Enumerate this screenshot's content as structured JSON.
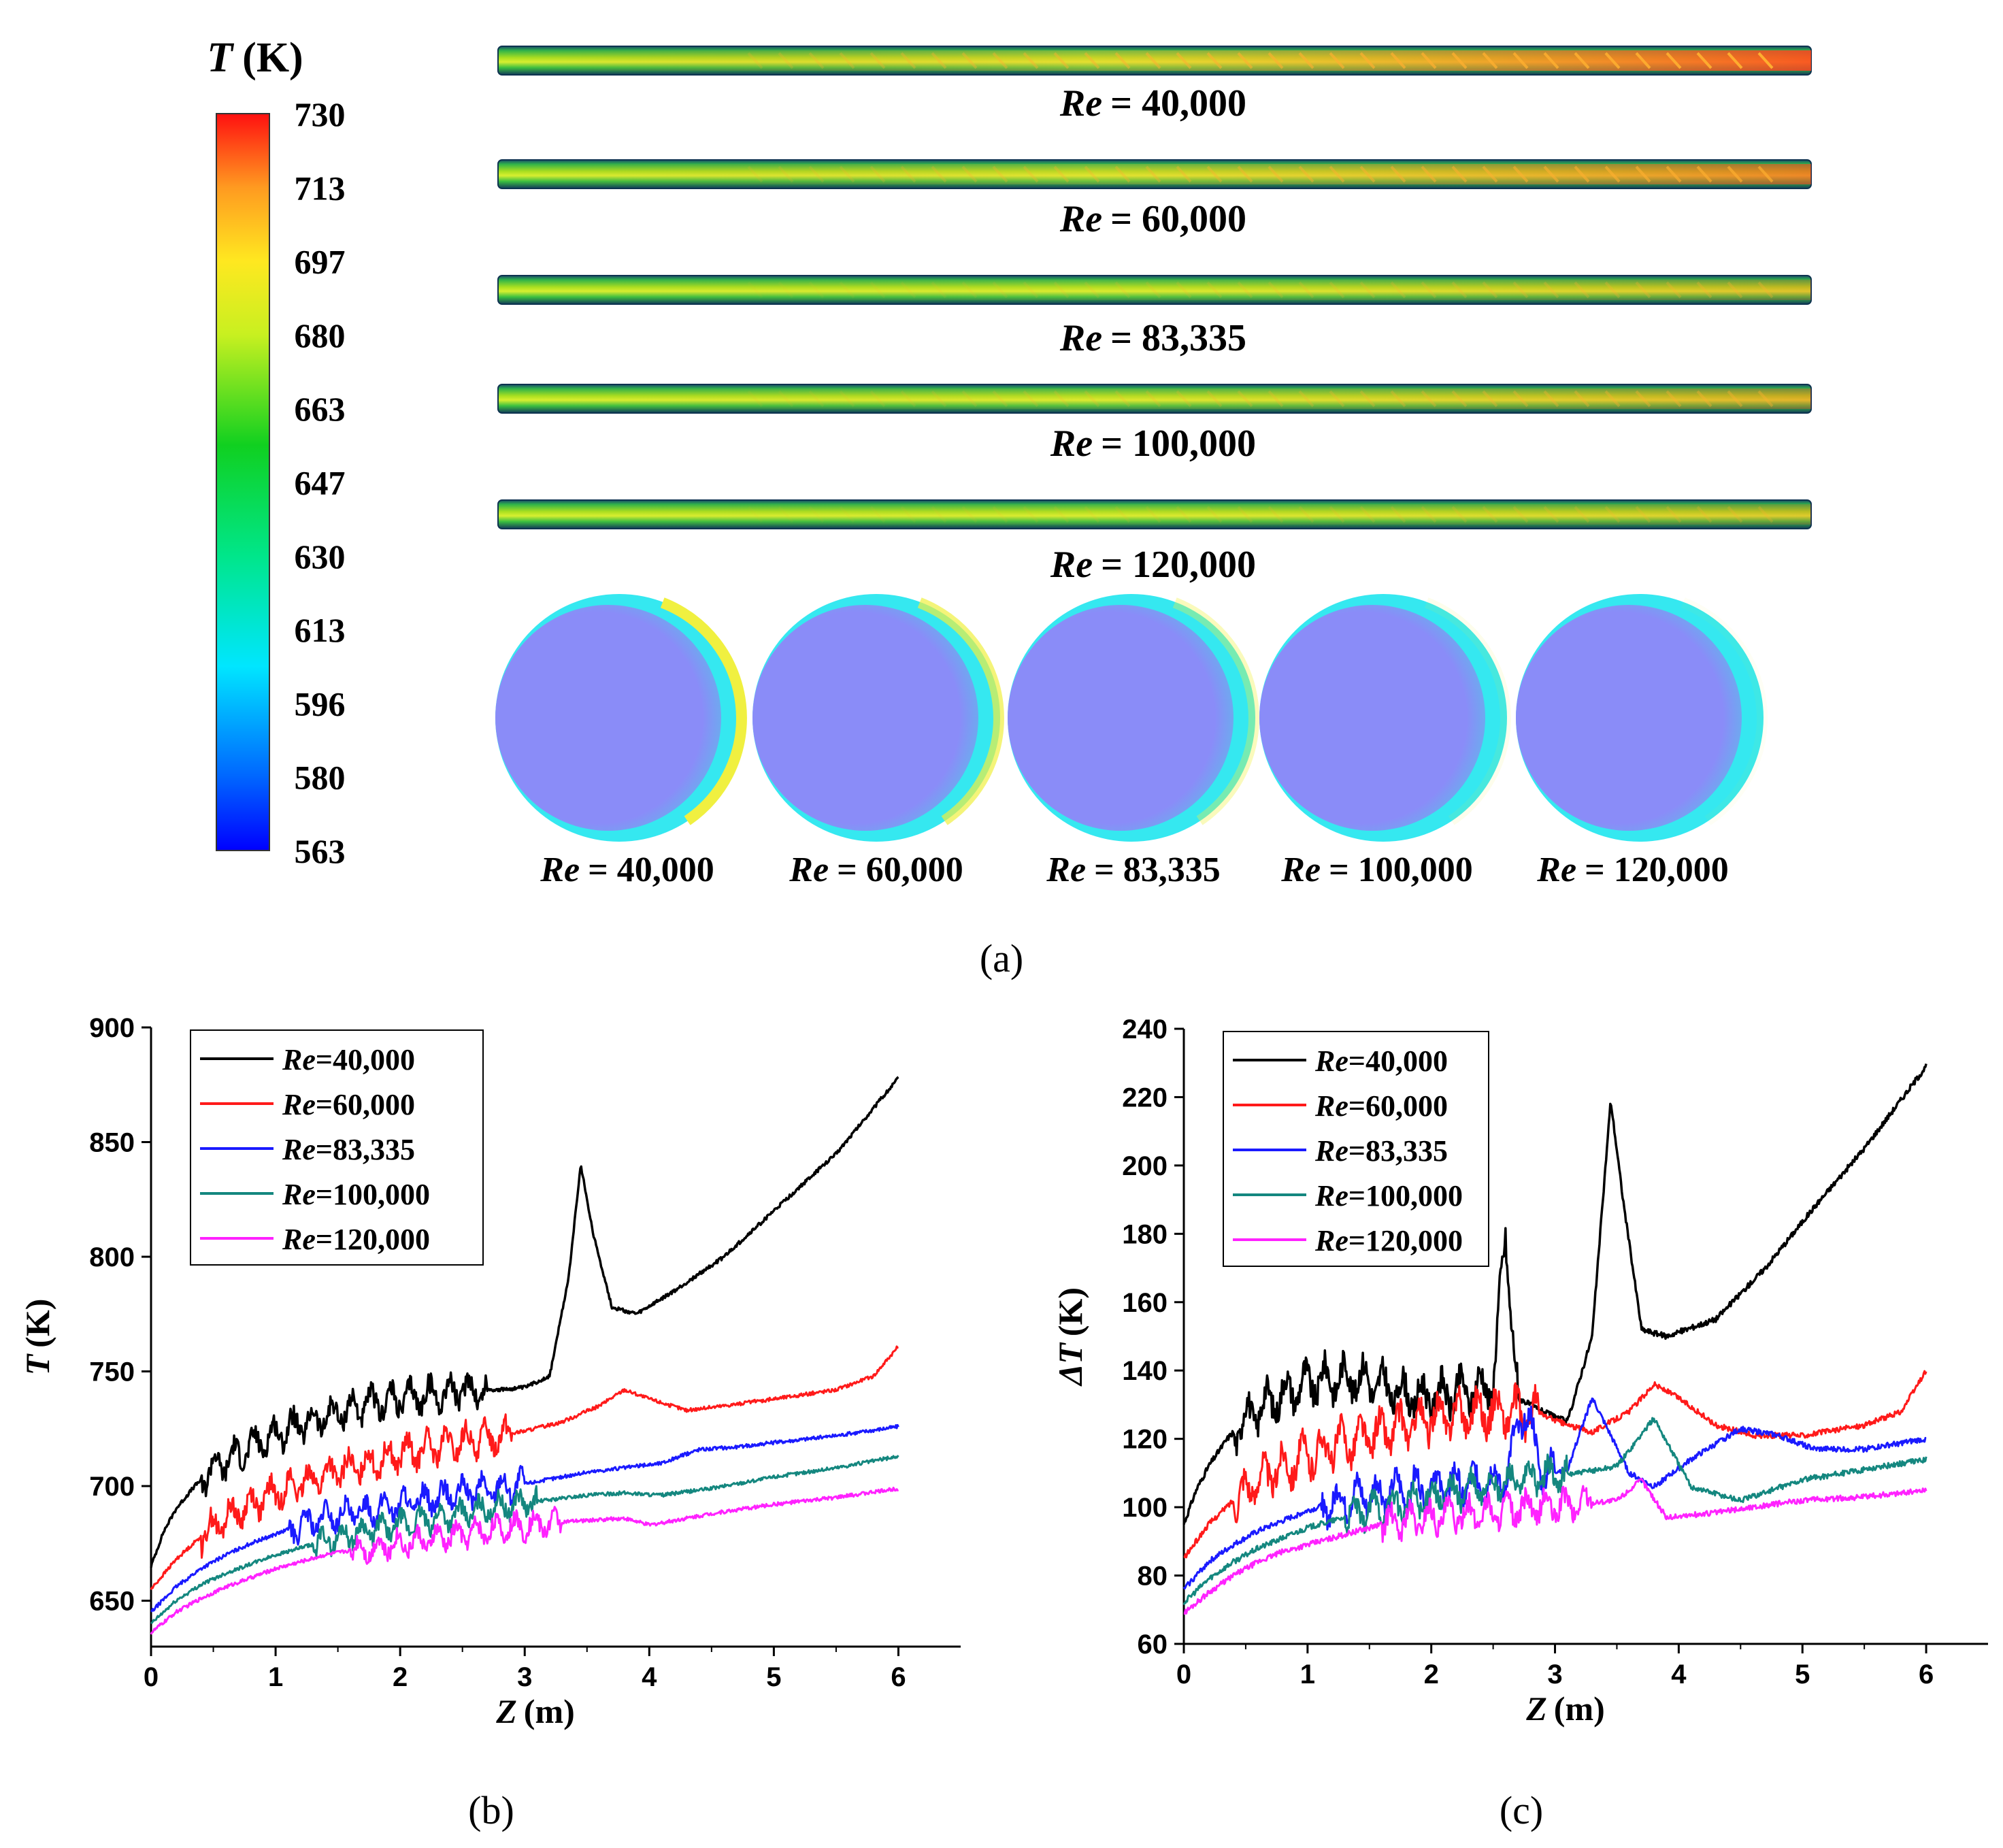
{
  "figure": {
    "panel_labels": [
      "(a)",
      "(b)",
      "(c)"
    ]
  },
  "colors": {
    "re40": "#000000",
    "re60": "#ff1a1a",
    "re83": "#1a1aff",
    "re100": "#14877f",
    "re120": "#ff22ff",
    "section_core": "#8a8cf8"
  },
  "chart_data": [
    {
      "type": "contour",
      "panel": "(a)",
      "colorbar": {
        "title_sym": "T",
        "title_unit": "(K)",
        "ticks": [
          "730",
          "713",
          "697",
          "680",
          "663",
          "647",
          "630",
          "613",
          "596",
          "580",
          "563"
        ],
        "range": [
          563,
          730
        ]
      },
      "tube_labels": [
        "Re = 40,000",
        "Re = 60,000",
        "Re = 83,335",
        "Re = 100,000",
        "Re = 120,000"
      ],
      "section_labels": [
        "Re = 40,000",
        "Re = 60,000",
        "Re = 83,335",
        "Re = 100,000",
        "Re = 120,000"
      ],
      "label_prefix": "Re",
      "label_values": [
        "= 40,000",
        "= 60,000",
        "= 83,335",
        "= 100,000",
        "= 120,000"
      ],
      "tube_hotness": [
        1.0,
        0.7,
        0.3,
        0.4,
        0.25
      ],
      "section_hot_band": [
        1.0,
        0.7,
        0.35,
        0.1,
        0.05
      ]
    },
    {
      "type": "line",
      "panel": "(b)",
      "xlabel_sym": "Z",
      "xlabel_unit": "(m)",
      "ylabel_sym": "T",
      "ylabel_unit": "(K)",
      "xlim": [
        0,
        6.5
      ],
      "ylim": [
        630,
        900
      ],
      "xticks": [
        "0",
        "1",
        "2",
        "3",
        "4",
        "5",
        "6"
      ],
      "yticks": [
        "650",
        "700",
        "750",
        "800",
        "850",
        "900"
      ],
      "legend": [
        "Re=40,000",
        "Re=60,000",
        "Re=83,335",
        "Re=100,000",
        "Re=120,000"
      ],
      "legend_prefix": "Re",
      "legend_values": [
        "=40,000",
        "=60,000",
        "=83,335",
        "=100,000",
        "=120,000"
      ],
      "series": [
        {
          "name": "Re=40,000",
          "x": [
            0,
            0.1,
            0.2,
            0.35,
            0.5,
            0.7,
            0.9,
            1.1,
            1.3,
            1.5,
            1.7,
            1.9,
            2.1,
            2.3,
            2.5,
            2.6,
            2.8,
            3.0,
            3.2,
            3.35,
            3.45,
            3.55,
            3.7,
            3.9,
            4.2,
            4.6,
            5.0,
            5.5,
            6.0
          ],
          "y": [
            665,
            680,
            690,
            700,
            708,
            714,
            720,
            725,
            728,
            732,
            735,
            737,
            739,
            740,
            742,
            742,
            742,
            743,
            748,
            790,
            840,
            810,
            778,
            775,
            785,
            800,
            820,
            845,
            878
          ]
        },
        {
          "name": "Re=60,000",
          "x": [
            0,
            0.2,
            0.4,
            0.6,
            0.8,
            1.0,
            1.2,
            1.4,
            1.6,
            1.8,
            2.0,
            2.2,
            2.5,
            2.8,
            3.0,
            3.3,
            3.6,
            3.8,
            4.0,
            4.3,
            4.6,
            5.0,
            5.5,
            5.8,
            6.0
          ],
          "y": [
            655,
            668,
            678,
            686,
            692,
            697,
            701,
            705,
            708,
            711,
            714,
            716,
            719,
            722,
            724,
            728,
            735,
            742,
            738,
            733,
            735,
            738,
            742,
            748,
            761
          ]
        },
        {
          "name": "Re=83,335",
          "x": [
            0,
            0.2,
            0.4,
            0.6,
            0.8,
            1.0,
            1.2,
            1.4,
            1.6,
            1.8,
            2.0,
            2.3,
            2.6,
            2.9,
            3.2,
            3.5,
            3.8,
            4.1,
            4.4,
            4.7,
            5.0,
            5.5,
            6.0
          ],
          "y": [
            645,
            656,
            664,
            670,
            675,
            679,
            683,
            686,
            688,
            690,
            692,
            695,
            698,
            700,
            703,
            706,
            708,
            710,
            716,
            717,
            719,
            722,
            726
          ]
        },
        {
          "name": "Re=100,000",
          "x": [
            0,
            0.2,
            0.4,
            0.6,
            0.8,
            1.0,
            1.2,
            1.4,
            1.6,
            1.8,
            2.0,
            2.3,
            2.6,
            2.9,
            3.2,
            3.5,
            3.8,
            4.1,
            4.5,
            5.0,
            5.5,
            6.0
          ],
          "y": [
            640,
            650,
            657,
            662,
            666,
            670,
            673,
            676,
            679,
            681,
            683,
            686,
            689,
            692,
            694,
            696,
            697,
            696,
            699,
            704,
            708,
            713
          ]
        },
        {
          "name": "Re=120,000",
          "x": [
            0,
            0.2,
            0.4,
            0.6,
            0.8,
            1.0,
            1.2,
            1.4,
            1.6,
            1.8,
            2.0,
            2.3,
            2.6,
            2.9,
            3.2,
            3.5,
            3.8,
            4.0,
            4.5,
            5.0,
            5.5,
            6.0
          ],
          "y": [
            636,
            645,
            651,
            656,
            660,
            664,
            667,
            670,
            672,
            673,
            675,
            677,
            680,
            682,
            684,
            685,
            686,
            683,
            688,
            692,
            695,
            699
          ]
        }
      ]
    },
    {
      "type": "line",
      "panel": "(c)",
      "xlabel_sym": "Z",
      "xlabel_unit": "(m)",
      "ylabel_sym": "ΔT",
      "ylabel_unit": "(K)",
      "xlim": [
        0,
        6.5
      ],
      "ylim": [
        60,
        240
      ],
      "xticks": [
        "0",
        "1",
        "2",
        "3",
        "4",
        "5",
        "6"
      ],
      "yticks": [
        "60",
        "80",
        "100",
        "120",
        "140",
        "160",
        "180",
        "200",
        "220",
        "240"
      ],
      "legend": [
        "Re=40,000",
        "Re=60,000",
        "Re=83,335",
        "Re=100,000",
        "Re=120,000"
      ],
      "legend_prefix": "Re",
      "legend_values": [
        "=40,000",
        "=60,000",
        "=83,335",
        "=100,000",
        "=120,000"
      ],
      "series": [
        {
          "name": "Re=40,000",
          "x": [
            0,
            0.1,
            0.2,
            0.35,
            0.5,
            0.7,
            0.9,
            1.1,
            1.3,
            1.5,
            1.7,
            1.9,
            2.1,
            2.3,
            2.5,
            2.6,
            2.7,
            2.9,
            3.1,
            3.3,
            3.45,
            3.55,
            3.7,
            3.9,
            4.3,
            4.7,
            5.1,
            5.5,
            6.0
          ],
          "y": [
            95,
            105,
            112,
            120,
            126,
            131,
            135,
            137,
            138,
            137,
            134,
            132,
            133,
            134,
            136,
            180,
            132,
            128,
            125,
            150,
            219,
            190,
            152,
            150,
            155,
            170,
            188,
            205,
            229
          ]
        },
        {
          "name": "Re=60,000",
          "x": [
            0,
            0.2,
            0.4,
            0.6,
            0.8,
            1.0,
            1.2,
            1.4,
            1.6,
            1.8,
            2.0,
            2.3,
            2.6,
            2.9,
            3.1,
            3.3,
            3.6,
            3.8,
            4.0,
            4.3,
            4.6,
            5.0,
            5.5,
            5.8,
            6.0
          ],
          "y": [
            85,
            95,
            102,
            108,
            112,
            115,
            118,
            120,
            122,
            124,
            126,
            128,
            128,
            127,
            124,
            122,
            128,
            136,
            132,
            124,
            121,
            121,
            124,
            128,
            140
          ]
        },
        {
          "name": "Re=83,335",
          "x": [
            0,
            0.2,
            0.4,
            0.6,
            0.8,
            1.0,
            1.2,
            1.4,
            1.6,
            1.8,
            2.0,
            2.3,
            2.6,
            2.75,
            2.9,
            3.1,
            3.3,
            3.6,
            3.8,
            4.1,
            4.5,
            4.8,
            5.1,
            5.5,
            6.0
          ],
          "y": [
            76,
            84,
            89,
            93,
            96,
            99,
            101,
            103,
            104,
            105,
            106,
            107,
            108,
            130,
            110,
            111,
            132,
            110,
            106,
            114,
            123,
            121,
            117,
            117,
            120
          ]
        },
        {
          "name": "Re=100,000",
          "x": [
            0,
            0.2,
            0.4,
            0.6,
            0.8,
            1.0,
            1.2,
            1.4,
            1.6,
            1.8,
            2.0,
            2.3,
            2.6,
            2.9,
            3.2,
            3.5,
            3.8,
            4.1,
            4.5,
            5.0,
            5.5,
            6.0
          ],
          "y": [
            72,
            79,
            84,
            88,
            91,
            94,
            96,
            98,
            100,
            101,
            103,
            105,
            107,
            109,
            110,
            112,
            126,
            106,
            102,
            108,
            111,
            114
          ]
        },
        {
          "name": "Re=120,000",
          "x": [
            0,
            0.2,
            0.4,
            0.6,
            0.8,
            1.0,
            1.2,
            1.4,
            1.6,
            1.8,
            2.0,
            2.3,
            2.6,
            2.9,
            3.2,
            3.5,
            3.7,
            3.9,
            4.2,
            4.6,
            5.0,
            5.5,
            6.0
          ],
          "y": [
            69,
            75,
            80,
            84,
            87,
            89,
            91,
            93,
            95,
            96,
            97,
            98,
            99,
            100,
            101,
            102,
            108,
            97,
            98,
            100,
            102,
            103,
            105
          ]
        }
      ]
    }
  ]
}
